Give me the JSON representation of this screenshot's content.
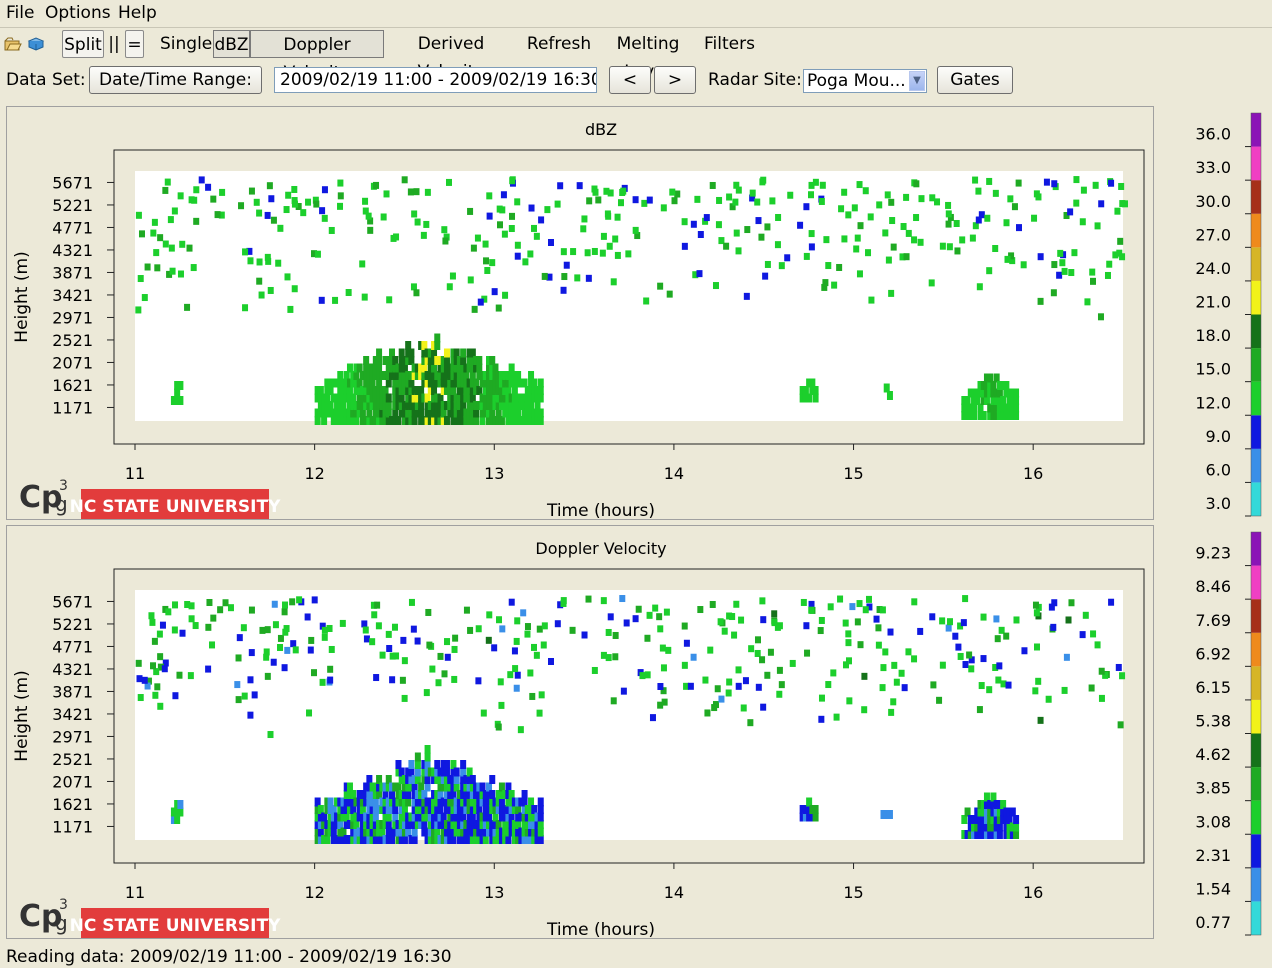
{
  "menu": {
    "file": "File",
    "options": "Options",
    "help": "Help"
  },
  "toolbar": {
    "icon_open": "open-folder-icon",
    "icon_book": "book-icon",
    "split": "Split",
    "parallel": "||",
    "equals": "=",
    "single": "Single",
    "dbz": "dBZ",
    "doppler_velocity": "Doppler Velocity",
    "derived_velocity": "Derived Velocity",
    "refresh": "Refresh",
    "melting_layer": "Melting Layer",
    "filters": "Filters"
  },
  "dataset": {
    "label": "Data Set:",
    "date_range_button": "Date/Time Range:",
    "date_range_value": "2009/02/19 11:00 - 2009/02/19 16:30",
    "prev": "<",
    "next": ">",
    "radar_site_label": "Radar Site:",
    "radar_site_value": "Poga Mou...",
    "gates": "Gates"
  },
  "logo": {
    "cpg": "CPg3",
    "university": "NC STATE UNIVERSITY"
  },
  "colors": {
    "scale": [
      "#33d9d9",
      "#3a8fe8",
      "#0f18e0",
      "#1ccf2c",
      "#1faa23",
      "#15721a",
      "#f2f21a",
      "#d6b526",
      "#ef8a1c",
      "#a6301a",
      "#f03fc3",
      "#8b14b6"
    ],
    "panel_bg": "#ece9d8",
    "plot_bg": "#ffffff",
    "logo_red": "#e23c3c"
  },
  "chart_data": [
    {
      "type": "heatmap",
      "title": "dBZ",
      "xlabel": "Time (hours)",
      "ylabel": "Height (m)",
      "xlim": [
        11,
        16.5
      ],
      "ylim": [
        900,
        5900
      ],
      "x_ticks": [
        "11",
        "12",
        "13",
        "14",
        "15",
        "16"
      ],
      "y_ticks": [
        "5671",
        "5221",
        "4771",
        "4321",
        "3871",
        "3421",
        "2971",
        "2521",
        "2071",
        "1621",
        "1171"
      ],
      "colorbar_labels": [
        "36.0",
        "33.0",
        "30.0",
        "27.0",
        "24.0",
        "21.0",
        "18.0",
        "15.0",
        "12.0",
        "9.0",
        "6.0",
        "3.0"
      ],
      "colorbar_range": [
        0,
        39
      ],
      "seed": 7,
      "blobs": [
        {
          "x0": 12.0,
          "x1": 13.25,
          "y0": 1000,
          "y1": 2900,
          "peak": 20,
          "base": 10
        },
        {
          "x0": 11.2,
          "x1": 11.25,
          "y0": 1400,
          "y1": 1900,
          "peak": 10,
          "base": 10
        },
        {
          "x0": 14.7,
          "x1": 14.78,
          "y0": 1450,
          "y1": 1900,
          "peak": 11,
          "base": 10
        },
        {
          "x0": 15.15,
          "x1": 15.2,
          "y0": 1500,
          "y1": 1750,
          "peak": 10,
          "base": 10
        },
        {
          "x0": 15.6,
          "x1": 15.9,
          "y0": 1100,
          "y1": 2100,
          "peak": 14,
          "base": 11
        }
      ]
    },
    {
      "type": "heatmap",
      "title": "Doppler Velocity",
      "xlabel": "Time (hours)",
      "ylabel": "Height (m)",
      "xlim": [
        11,
        16.5
      ],
      "ylim": [
        900,
        5900
      ],
      "x_ticks": [
        "11",
        "12",
        "13",
        "14",
        "15",
        "16"
      ],
      "y_ticks": [
        "5671",
        "5221",
        "4771",
        "4321",
        "3871",
        "3421",
        "2971",
        "2521",
        "2071",
        "1621",
        "1171"
      ],
      "colorbar_labels": [
        "9.23",
        "8.46",
        "7.69",
        "6.92",
        "6.15",
        "5.38",
        "4.62",
        "3.85",
        "3.08",
        "2.31",
        "1.54",
        "0.77"
      ],
      "colorbar_range": [
        0,
        10
      ],
      "seed": 7,
      "blobs": [
        {
          "x0": 12.0,
          "x1": 13.25,
          "y0": 1000,
          "y1": 2900,
          "peak": 2.0,
          "base": 2.0
        },
        {
          "x0": 11.2,
          "x1": 11.25,
          "y0": 1400,
          "y1": 1900,
          "peak": 1.8,
          "base": 2.0
        },
        {
          "x0": 14.7,
          "x1": 14.78,
          "y0": 1450,
          "y1": 1900,
          "peak": 1.8,
          "base": 2.0
        },
        {
          "x0": 15.15,
          "x1": 15.2,
          "y0": 1500,
          "y1": 1750,
          "peak": 1.2,
          "base": 2.0
        },
        {
          "x0": 15.6,
          "x1": 15.9,
          "y0": 1100,
          "y1": 2100,
          "peak": 1.8,
          "base": 2.0
        }
      ]
    }
  ],
  "status": "Reading data: 2009/02/19 11:00 - 2009/02/19 16:30"
}
